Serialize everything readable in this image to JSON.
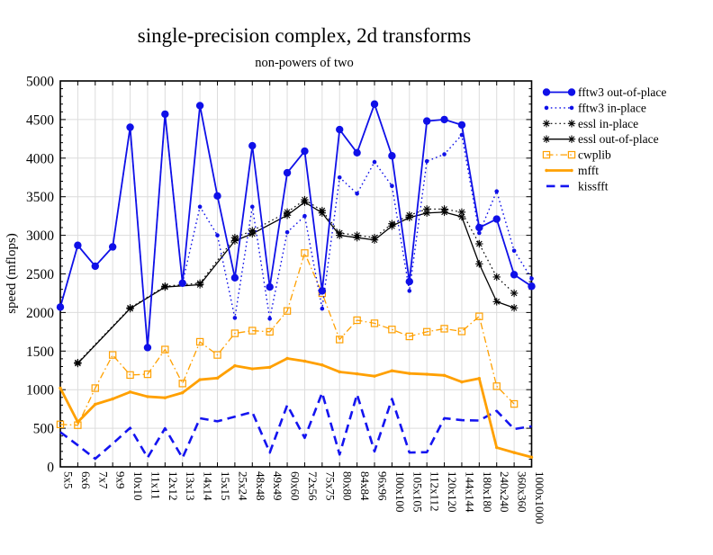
{
  "title": "single-precision complex, 2d transforms",
  "subtitle": "non-powers of two",
  "chart_data": {
    "type": "line",
    "title": "single-precision complex, 2d transforms",
    "subtitle": "non-powers of two",
    "xlabel": "",
    "ylabel": "speed (mflops)",
    "ylim": [
      0,
      5000
    ],
    "ytick_step": 500,
    "yminor_step": 100,
    "grid": true,
    "legend_position": "outside-right",
    "grid_color": "#dcdcdc",
    "blue": "#0f10e8",
    "orange": "#ffa000",
    "black": "#000000",
    "categories": [
      "5x5",
      "6x6",
      "7x7",
      "9x9",
      "10x10",
      "11x11",
      "12x12",
      "13x13",
      "14x14",
      "15x15",
      "25x24",
      "48x48",
      "49x49",
      "60x60",
      "72x56",
      "75x75",
      "80x80",
      "84x84",
      "96x96",
      "100x100",
      "105x105",
      "112x112",
      "120x120",
      "144x144",
      "180x180",
      "240x240",
      "360x360",
      "1000x1000"
    ],
    "series": [
      {
        "name": "fftw3 out-of-place",
        "color": "#0f10e8",
        "line": "solid",
        "width": 1.8,
        "marker": "circle",
        "marker_size": 4.2,
        "values": [
          2070,
          2870,
          2600,
          2850,
          4400,
          1545,
          4570,
          2380,
          4680,
          3510,
          2450,
          4160,
          2330,
          3810,
          4090,
          2280,
          4370,
          4070,
          4700,
          4030,
          2400,
          4480,
          4500,
          4430,
          3100,
          3210,
          2490,
          2340
        ]
      },
      {
        "name": "fftw3 in-place",
        "color": "#0f10e8",
        "line": "dotted",
        "width": 1.4,
        "marker": "circle",
        "marker_size": 2.3,
        "values": [
          2070,
          2870,
          2600,
          2850,
          4400,
          1545,
          4570,
          2380,
          3370,
          3000,
          1930,
          3370,
          1920,
          3040,
          3250,
          2050,
          3750,
          3540,
          3950,
          3640,
          2280,
          3960,
          4050,
          4300,
          3030,
          3570,
          2800,
          2440
        ]
      },
      {
        "name": "essl in-place",
        "color": "#000000",
        "line": "dotted",
        "width": 1.2,
        "marker": "asterisk",
        "marker_size": 4.2,
        "values": [
          null,
          1350,
          null,
          null,
          2060,
          null,
          2340,
          null,
          2380,
          null,
          2970,
          3060,
          null,
          3300,
          3460,
          3320,
          3030,
          3000,
          2970,
          3150,
          3260,
          3340,
          3340,
          3300,
          2890,
          2460,
          2250,
          null
        ]
      },
      {
        "name": "essl out-of-place",
        "color": "#000000",
        "line": "solid",
        "width": 1.3,
        "marker": "asterisk",
        "marker_size": 4.2,
        "values": [
          null,
          1340,
          null,
          null,
          2050,
          null,
          2330,
          null,
          2360,
          null,
          2930,
          3020,
          null,
          3260,
          3430,
          3290,
          3000,
          2970,
          2940,
          3120,
          3230,
          3290,
          3300,
          3240,
          2630,
          2140,
          2060,
          null
        ]
      },
      {
        "name": "cwplib",
        "color": "#ffa000",
        "line": "dashdot",
        "width": 1.3,
        "marker": "square",
        "marker_size": 3.6,
        "values": [
          550,
          540,
          1020,
          1450,
          1190,
          1200,
          1520,
          1080,
          1620,
          1450,
          1730,
          1765,
          1750,
          2020,
          2770,
          2250,
          1650,
          1900,
          1860,
          1780,
          1690,
          1750,
          1790,
          1755,
          1950,
          1045,
          815,
          null
        ]
      },
      {
        "name": "mfft",
        "color": "#ffa000",
        "line": "solid",
        "width": 2.8,
        "marker": "dot",
        "marker_size": 1.7,
        "values": [
          1020,
          580,
          810,
          880,
          970,
          910,
          895,
          960,
          1130,
          1150,
          1310,
          1270,
          1290,
          1405,
          1370,
          1320,
          1230,
          1205,
          1175,
          1245,
          1210,
          1200,
          1185,
          1100,
          1145,
          250,
          185,
          125
        ]
      },
      {
        "name": "kissfft",
        "color": "#1414f0",
        "line": "dashed",
        "width": 2.6,
        "marker": "none",
        "marker_size": 0,
        "values": [
          450,
          280,
          105,
          300,
          505,
          120,
          500,
          115,
          630,
          590,
          650,
          710,
          185,
          800,
          375,
          960,
          160,
          940,
          200,
          880,
          185,
          190,
          630,
          605,
          600,
          725,
          490,
          525
        ]
      }
    ]
  }
}
